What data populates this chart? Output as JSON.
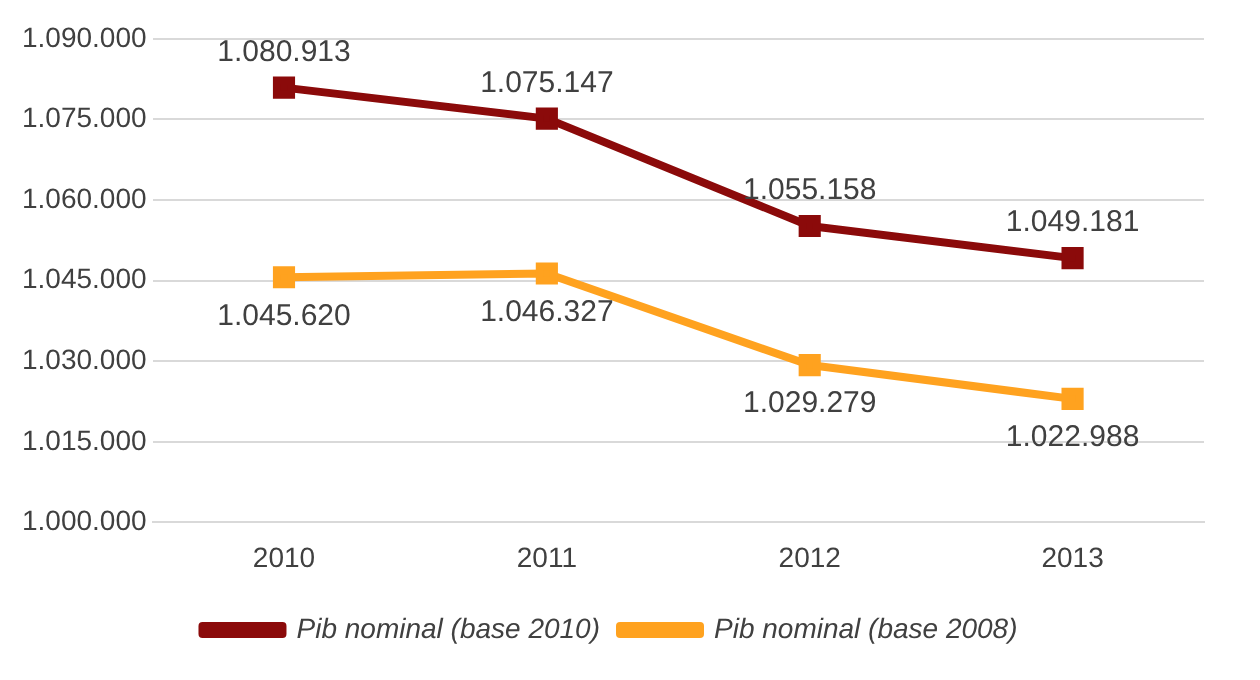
{
  "chart_data": {
    "type": "line",
    "categories": [
      "2010",
      "2011",
      "2012",
      "2013"
    ],
    "series": [
      {
        "name": "Pib nominal (base 2010)",
        "color": "#8b0a0a",
        "values": [
          1080913,
          1075147,
          1055158,
          1049181
        ],
        "value_labels": [
          "1.080.913",
          "1.075.147",
          "1.055.158",
          "1.049.181"
        ]
      },
      {
        "name": "Pib nominal (base 2008)",
        "color": "#ffa21f",
        "values": [
          1045620,
          1046327,
          1029279,
          1022988
        ],
        "value_labels": [
          "1.045.620",
          "1.046.327",
          "1.029.279",
          "1.022.988"
        ]
      }
    ],
    "ylim": [
      1000000,
      1090000
    ],
    "yticks": [
      {
        "value": 1000000,
        "label": "1.000.000"
      },
      {
        "value": 1015000,
        "label": "1.015.000"
      },
      {
        "value": 1030000,
        "label": "1.030.000"
      },
      {
        "value": 1045000,
        "label": "1.045.000"
      },
      {
        "value": 1060000,
        "label": "1.060.000"
      },
      {
        "value": 1075000,
        "label": "1.075.000"
      },
      {
        "value": 1090000,
        "label": "1.090.000"
      }
    ],
    "grid": "y",
    "legend": "bottom",
    "marker": "square",
    "line_style": "solid"
  }
}
